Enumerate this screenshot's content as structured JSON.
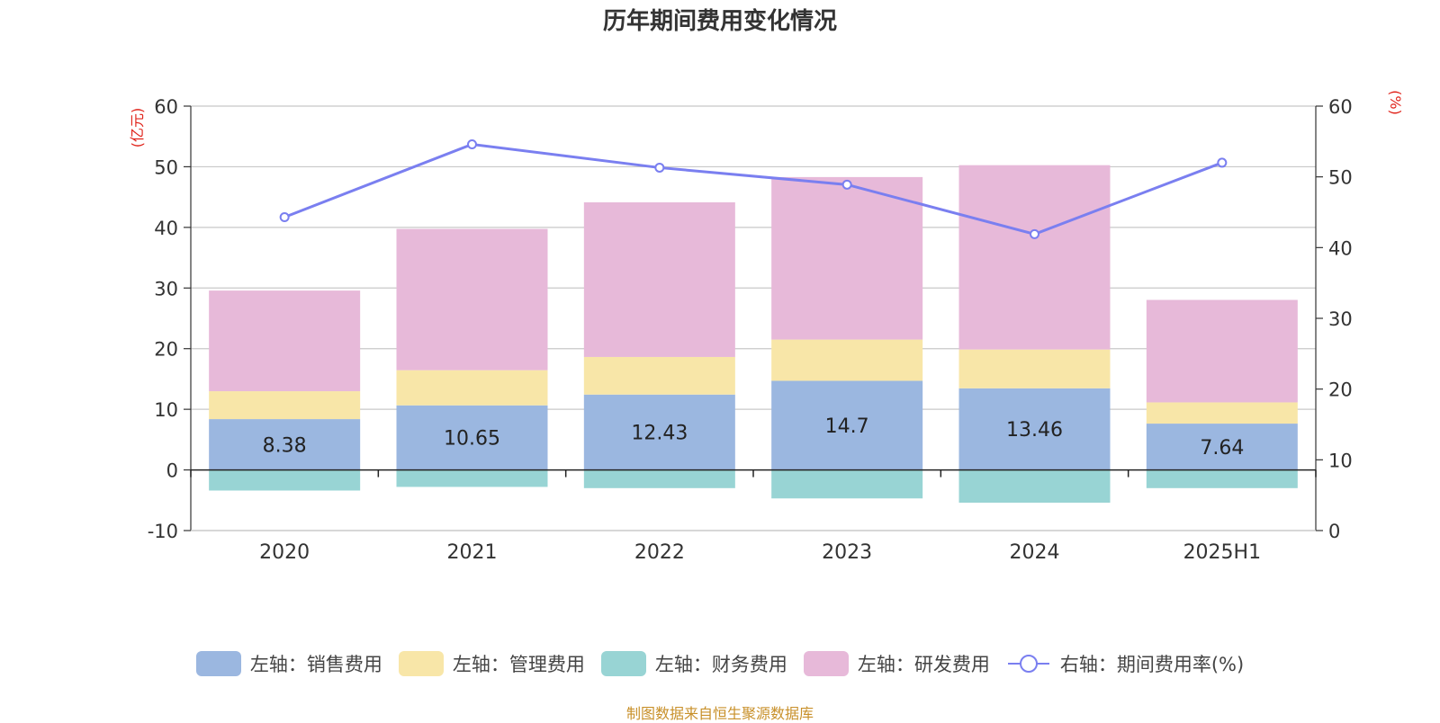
{
  "source_text": "制图数据来自恒生聚源数据库",
  "chart_data": {
    "type": "bar",
    "title": "历年期间费用变化情况",
    "y_left_label": "(亿元)",
    "y_right_label": "(%)",
    "categories": [
      "2020",
      "2021",
      "2022",
      "2023",
      "2024",
      "2025H1"
    ],
    "y_left": {
      "min": -10,
      "max": 60,
      "ticks": [
        -10,
        0,
        10,
        20,
        30,
        40,
        50,
        60
      ]
    },
    "y_right": {
      "min": 0,
      "max": 60,
      "ticks": [
        0,
        10,
        20,
        30,
        40,
        50,
        60
      ]
    },
    "grid": true,
    "legend_position": "bottom",
    "series": [
      {
        "name": "左轴：销售费用",
        "axis": "left",
        "stack": "pos",
        "color": "#9bb7e0",
        "values": [
          8.38,
          10.65,
          12.43,
          14.7,
          13.46,
          7.64
        ],
        "show_labels": true
      },
      {
        "name": "左轴：管理费用",
        "axis": "left",
        "stack": "pos",
        "color": "#f8e6a8",
        "values": [
          4.6,
          5.8,
          6.2,
          6.8,
          6.4,
          3.5
        ]
      },
      {
        "name": "左轴：财务费用",
        "axis": "left",
        "stack": "neg",
        "color": "#98d4d4",
        "values": [
          -3.4,
          -2.8,
          -3.0,
          -4.7,
          -5.4,
          -3.0
        ]
      },
      {
        "name": "左轴：研发费用",
        "axis": "left",
        "stack": "pos",
        "color": "#e7b9d9",
        "values": [
          16.6,
          23.3,
          25.5,
          26.8,
          30.4,
          16.9
        ]
      }
    ],
    "line_series": {
      "name": "右轴：期间费用率(%)",
      "axis": "right",
      "color": "#7a7ff0",
      "values": [
        44.3,
        54.6,
        51.3,
        48.9,
        41.9,
        52.0
      ]
    }
  }
}
